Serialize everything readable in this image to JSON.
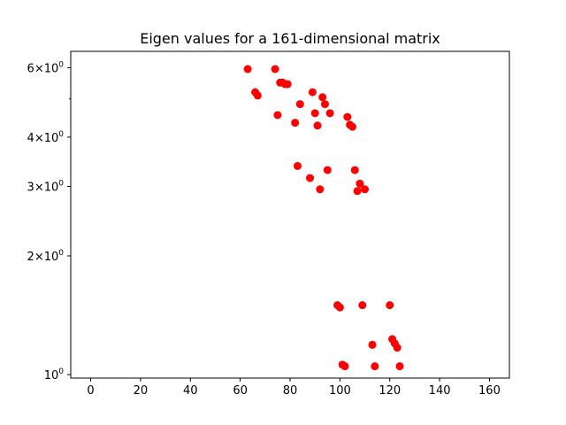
{
  "chart_data": {
    "type": "scatter",
    "title": "Eigen values for a 161-dimensional matrix",
    "xlabel": "",
    "ylabel": "",
    "xlim": [
      -8,
      168
    ],
    "ylim": [
      0.98,
      6.6
    ],
    "yscale": "log",
    "grid": false,
    "marker_color": "#ff0000",
    "x_ticks": [
      {
        "value": 0,
        "label": "0"
      },
      {
        "value": 20,
        "label": "20"
      },
      {
        "value": 40,
        "label": "40"
      },
      {
        "value": 60,
        "label": "60"
      },
      {
        "value": 80,
        "label": "80"
      },
      {
        "value": 100,
        "label": "100"
      },
      {
        "value": 120,
        "label": "120"
      },
      {
        "value": 140,
        "label": "140"
      },
      {
        "value": 160,
        "label": "160"
      }
    ],
    "y_major_ticks": [
      {
        "value": 1,
        "base": "10",
        "exp": "0"
      },
      {
        "value": 2,
        "coef": "2",
        "base": "10",
        "exp": "0"
      },
      {
        "value": 3,
        "coef": "3",
        "base": "10",
        "exp": "0"
      },
      {
        "value": 4,
        "coef": "4",
        "base": "10",
        "exp": "0"
      },
      {
        "value": 6,
        "coef": "6",
        "base": "10",
        "exp": "0"
      }
    ],
    "y_minor_ticks": [
      5
    ],
    "x": [
      63,
      74,
      66,
      67,
      76,
      77,
      78,
      79,
      75,
      84,
      89,
      93,
      94,
      90,
      96,
      82,
      91,
      103,
      104,
      105,
      83,
      95,
      88,
      92,
      106,
      108,
      107,
      110,
      99,
      100,
      109,
      120,
      121,
      122,
      123,
      113,
      101,
      102,
      114,
      124
    ],
    "y": [
      5.95,
      5.95,
      5.2,
      5.1,
      5.5,
      5.5,
      5.45,
      5.45,
      4.55,
      4.85,
      5.2,
      5.05,
      4.85,
      4.6,
      4.6,
      4.35,
      4.28,
      4.5,
      4.3,
      4.25,
      3.38,
      3.3,
      3.15,
      2.95,
      3.3,
      3.05,
      2.92,
      2.95,
      1.5,
      1.48,
      1.5,
      1.5,
      1.23,
      1.2,
      1.17,
      1.19,
      1.06,
      1.05,
      1.05,
      1.05
    ]
  }
}
